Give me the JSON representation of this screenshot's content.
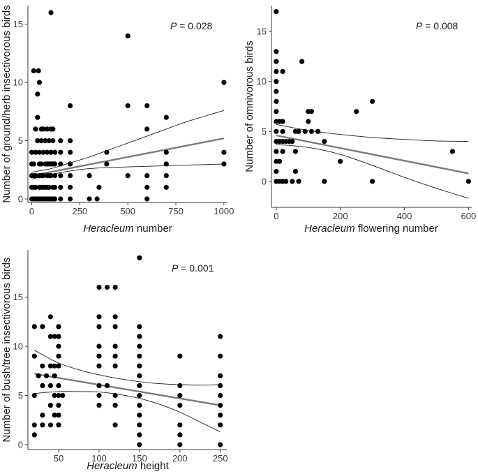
{
  "chart_data": [
    {
      "type": "scatter",
      "id": "panel-a",
      "xlabel_italic": "Heracleum",
      "xlabel_rest": " number",
      "ylabel": "Number of ground/herb insectivorous birds",
      "p_label": "P",
      "p_value": " = 0.028",
      "xlim": [
        -20,
        1015
      ],
      "ylim": [
        -0.3,
        16.6
      ],
      "xticks": [
        0,
        250,
        500,
        750,
        1000
      ],
      "yticks": [
        0,
        5,
        10,
        15
      ],
      "points": [
        [
          0,
          0
        ],
        [
          0,
          1
        ],
        [
          0,
          2
        ],
        [
          0,
          3
        ],
        [
          0,
          4
        ],
        [
          10,
          11
        ],
        [
          10,
          0
        ],
        [
          10,
          1
        ],
        [
          10,
          2
        ],
        [
          10,
          3
        ],
        [
          20,
          0
        ],
        [
          20,
          1
        ],
        [
          20,
          2
        ],
        [
          20,
          4
        ],
        [
          20,
          6
        ],
        [
          30,
          5
        ],
        [
          30,
          0
        ],
        [
          30,
          9
        ],
        [
          30,
          7
        ],
        [
          35,
          11
        ],
        [
          40,
          0
        ],
        [
          40,
          1
        ],
        [
          40,
          2
        ],
        [
          40,
          3
        ],
        [
          40,
          4
        ],
        [
          40,
          10
        ],
        [
          50,
          0
        ],
        [
          50,
          1
        ],
        [
          50,
          2
        ],
        [
          50,
          3
        ],
        [
          50,
          5
        ],
        [
          50,
          6
        ],
        [
          60,
          0
        ],
        [
          60,
          1
        ],
        [
          60,
          2
        ],
        [
          60,
          4
        ],
        [
          60,
          6
        ],
        [
          70,
          0
        ],
        [
          70,
          1
        ],
        [
          70,
          3
        ],
        [
          70,
          5
        ],
        [
          80,
          0
        ],
        [
          80,
          1
        ],
        [
          80,
          2
        ],
        [
          80,
          3
        ],
        [
          80,
          4
        ],
        [
          80,
          6
        ],
        [
          90,
          0
        ],
        [
          90,
          1
        ],
        [
          90,
          2
        ],
        [
          90,
          3
        ],
        [
          90,
          5
        ],
        [
          100,
          0
        ],
        [
          100,
          2
        ],
        [
          100,
          3
        ],
        [
          100,
          4
        ],
        [
          100,
          6
        ],
        [
          100,
          16
        ],
        [
          110,
          0
        ],
        [
          110,
          1
        ],
        [
          110,
          3
        ],
        [
          110,
          5
        ],
        [
          110,
          6
        ],
        [
          120,
          0
        ],
        [
          120,
          1
        ],
        [
          120,
          2
        ],
        [
          120,
          3
        ],
        [
          120,
          4
        ],
        [
          150,
          0
        ],
        [
          150,
          1
        ],
        [
          150,
          2
        ],
        [
          150,
          3
        ],
        [
          150,
          4
        ],
        [
          150,
          5
        ],
        [
          200,
          0
        ],
        [
          200,
          1
        ],
        [
          200,
          2
        ],
        [
          200,
          3
        ],
        [
          200,
          4
        ],
        [
          200,
          5
        ],
        [
          200,
          8
        ],
        [
          300,
          0
        ],
        [
          300,
          2
        ],
        [
          340,
          0
        ],
        [
          350,
          1
        ],
        [
          390,
          3
        ],
        [
          390,
          4
        ],
        [
          500,
          2
        ],
        [
          500,
          14
        ],
        [
          500,
          8
        ],
        [
          600,
          0
        ],
        [
          600,
          1
        ],
        [
          600,
          2
        ],
        [
          600,
          6
        ],
        [
          600,
          8
        ],
        [
          700,
          1
        ],
        [
          700,
          2
        ],
        [
          700,
          3
        ],
        [
          700,
          4
        ],
        [
          700,
          7
        ],
        [
          1000,
          3
        ],
        [
          1000,
          4
        ],
        [
          1000,
          10
        ]
      ],
      "fit": [
        [
          0,
          2.0
        ],
        [
          1000,
          5.2
        ]
      ],
      "ci_upper": [
        [
          0,
          2.3
        ],
        [
          100,
          2.6
        ],
        [
          200,
          3.1
        ],
        [
          300,
          3.6
        ],
        [
          400,
          4.2
        ],
        [
          500,
          4.8
        ],
        [
          600,
          5.4
        ],
        [
          700,
          6.0
        ],
        [
          800,
          6.6
        ],
        [
          900,
          7.1
        ],
        [
          1000,
          7.6
        ]
      ],
      "ci_lower": [
        [
          0,
          1.7
        ],
        [
          100,
          2.1
        ],
        [
          200,
          2.4
        ],
        [
          300,
          2.6
        ],
        [
          400,
          2.7
        ],
        [
          500,
          2.75
        ],
        [
          600,
          2.8
        ],
        [
          700,
          2.85
        ],
        [
          800,
          2.9
        ],
        [
          900,
          2.95
        ],
        [
          1000,
          3.0
        ]
      ]
    },
    {
      "type": "scatter",
      "id": "panel-b",
      "xlabel_italic": "Heracleum",
      "xlabel_rest": " flowering number",
      "ylabel": "Number of omnivorous birds",
      "p_label": "P",
      "p_value": " = 0.008",
      "xlim": [
        -15,
        610
      ],
      "ylim": [
        -2.6,
        17.6
      ],
      "xticks": [
        0,
        200,
        400,
        600
      ],
      "yticks": [
        0,
        5,
        10,
        15
      ],
      "points": [
        [
          0,
          0
        ],
        [
          0,
          1
        ],
        [
          0,
          2
        ],
        [
          0,
          3
        ],
        [
          0,
          4
        ],
        [
          0,
          5
        ],
        [
          0,
          6
        ],
        [
          0,
          7
        ],
        [
          0,
          8
        ],
        [
          0,
          9
        ],
        [
          0,
          10
        ],
        [
          0,
          11
        ],
        [
          0,
          12
        ],
        [
          0,
          13
        ],
        [
          0,
          17
        ],
        [
          10,
          0
        ],
        [
          10,
          2
        ],
        [
          10,
          4
        ],
        [
          10,
          6
        ],
        [
          20,
          0
        ],
        [
          20,
          3
        ],
        [
          20,
          4
        ],
        [
          20,
          5
        ],
        [
          20,
          6
        ],
        [
          20,
          11
        ],
        [
          30,
          0
        ],
        [
          30,
          4
        ],
        [
          40,
          4
        ],
        [
          50,
          0
        ],
        [
          50,
          4
        ],
        [
          60,
          1
        ],
        [
          60,
          3
        ],
        [
          60,
          5
        ],
        [
          70,
          0
        ],
        [
          70,
          5
        ],
        [
          80,
          12
        ],
        [
          90,
          5
        ],
        [
          100,
          6
        ],
        [
          100,
          7
        ],
        [
          110,
          5
        ],
        [
          110,
          7
        ],
        [
          130,
          5
        ],
        [
          150,
          0
        ],
        [
          150,
          4
        ],
        [
          200,
          2
        ],
        [
          250,
          7
        ],
        [
          300,
          0
        ],
        [
          300,
          8
        ],
        [
          550,
          3
        ],
        [
          600,
          0
        ]
      ],
      "fit": [
        [
          0,
          4.6
        ],
        [
          600,
          0.8
        ]
      ],
      "ci_upper": [
        [
          0,
          5.7
        ],
        [
          100,
          5.1
        ],
        [
          200,
          4.7
        ],
        [
          300,
          4.4
        ],
        [
          400,
          4.2
        ],
        [
          500,
          4.05
        ],
        [
          600,
          4.0
        ]
      ],
      "ci_lower": [
        [
          0,
          3.7
        ],
        [
          100,
          3.4
        ],
        [
          200,
          2.7
        ],
        [
          300,
          1.6
        ],
        [
          400,
          0.4
        ],
        [
          500,
          -0.7
        ],
        [
          600,
          -1.7
        ]
      ]
    },
    {
      "type": "scatter",
      "id": "panel-c",
      "xlabel_italic": "Heracleum",
      "xlabel_rest": " height",
      "ylabel": "Number of bush/tree insectivorous birds",
      "p_label": "P",
      "p_value": " = 0.001",
      "xlim": [
        12,
        258
      ],
      "ylim": [
        -0.5,
        19.8
      ],
      "xticks": [
        50,
        100,
        150,
        200,
        250
      ],
      "yticks": [
        0,
        5,
        10,
        15
      ],
      "points": [
        [
          20,
          1
        ],
        [
          20,
          2
        ],
        [
          20,
          5
        ],
        [
          20,
          9
        ],
        [
          20,
          12
        ],
        [
          25,
          7
        ],
        [
          30,
          2
        ],
        [
          30,
          3
        ],
        [
          30,
          6
        ],
        [
          30,
          8
        ],
        [
          30,
          12
        ],
        [
          35,
          7
        ],
        [
          40,
          2
        ],
        [
          40,
          4
        ],
        [
          40,
          6
        ],
        [
          40,
          8
        ],
        [
          40,
          11
        ],
        [
          40,
          13
        ],
        [
          45,
          3
        ],
        [
          45,
          5
        ],
        [
          45,
          7
        ],
        [
          45,
          8
        ],
        [
          45,
          11
        ],
        [
          50,
          2
        ],
        [
          50,
          3
        ],
        [
          50,
          4
        ],
        [
          50,
          5
        ],
        [
          50,
          6
        ],
        [
          50,
          8
        ],
        [
          50,
          9
        ],
        [
          50,
          10
        ],
        [
          50,
          11
        ],
        [
          50,
          12
        ],
        [
          55,
          5
        ],
        [
          100,
          4
        ],
        [
          100,
          5
        ],
        [
          100,
          6
        ],
        [
          100,
          8
        ],
        [
          100,
          9
        ],
        [
          100,
          10
        ],
        [
          100,
          12
        ],
        [
          100,
          13
        ],
        [
          100,
          16
        ],
        [
          110,
          6
        ],
        [
          110,
          16
        ],
        [
          120,
          2
        ],
        [
          120,
          4
        ],
        [
          120,
          5
        ],
        [
          120,
          8
        ],
        [
          120,
          9
        ],
        [
          120,
          10
        ],
        [
          120,
          12
        ],
        [
          120,
          13
        ],
        [
          120,
          16
        ],
        [
          150,
          0
        ],
        [
          150,
          1
        ],
        [
          150,
          2
        ],
        [
          150,
          3
        ],
        [
          150,
          4
        ],
        [
          150,
          5
        ],
        [
          150,
          6
        ],
        [
          150,
          7
        ],
        [
          150,
          8
        ],
        [
          150,
          9
        ],
        [
          150,
          10
        ],
        [
          150,
          11
        ],
        [
          150,
          12
        ],
        [
          150,
          19
        ],
        [
          200,
          0
        ],
        [
          200,
          1
        ],
        [
          200,
          2
        ],
        [
          200,
          4
        ],
        [
          200,
          5
        ],
        [
          200,
          6
        ],
        [
          200,
          9
        ],
        [
          250,
          0
        ],
        [
          250,
          2
        ],
        [
          250,
          3
        ],
        [
          250,
          4
        ],
        [
          250,
          5
        ],
        [
          250,
          6
        ],
        [
          250,
          7
        ],
        [
          250,
          9
        ],
        [
          250,
          11
        ]
      ],
      "fit": [
        [
          20,
          7.2
        ],
        [
          250,
          4.0
        ]
      ],
      "ci_upper": [
        [
          20,
          9.6
        ],
        [
          50,
          8.3
        ],
        [
          80,
          7.5
        ],
        [
          100,
          7.1
        ],
        [
          125,
          6.7
        ],
        [
          150,
          6.4
        ],
        [
          175,
          6.2
        ],
        [
          200,
          6.1
        ],
        [
          225,
          6.05
        ],
        [
          250,
          6.1
        ]
      ],
      "ci_lower": [
        [
          20,
          5.2
        ],
        [
          50,
          5.4
        ],
        [
          80,
          5.4
        ],
        [
          100,
          5.35
        ],
        [
          125,
          5.1
        ],
        [
          150,
          4.7
        ],
        [
          175,
          4.1
        ],
        [
          200,
          3.3
        ],
        [
          225,
          2.3
        ],
        [
          250,
          1.3
        ]
      ]
    }
  ]
}
